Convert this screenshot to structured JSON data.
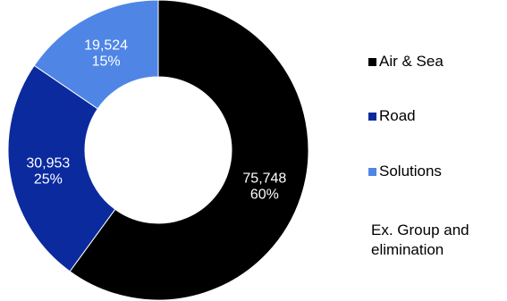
{
  "chart_data": {
    "type": "pie",
    "subtype": "donut",
    "categories": [
      "Air & Sea",
      "Road",
      "Solutions"
    ],
    "values": [
      75748,
      30953,
      19524
    ],
    "value_labels": [
      "75,748",
      "30,953",
      "19,524"
    ],
    "percent_labels": [
      "60%",
      "25%",
      "15%"
    ],
    "colors": [
      "#000000",
      "#0a2a9e",
      "#4f86e6"
    ],
    "legend_position": "right",
    "note": "Ex. Group and elimination"
  }
}
